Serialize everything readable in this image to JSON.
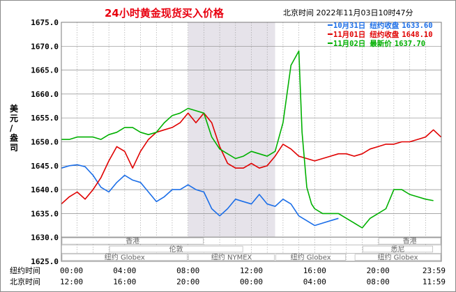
{
  "chart_data": {
    "type": "line",
    "title": "24小时黄金现货买入价格",
    "timestamp": "北京时间  2022年11月03日10时47分",
    "ylabel": "美元/盎司",
    "ylim": [
      1625.0,
      1675.0
    ],
    "yticks": [
      "1675.0",
      "1670.0",
      "1665.0",
      "1660.0",
      "1655.0",
      "1650.0",
      "1645.0",
      "1640.0",
      "1635.0",
      "1630.0",
      "1625.0"
    ],
    "xlim": [
      0,
      24
    ],
    "row1_label": "纽约时间",
    "row2_label": "北京时间",
    "row1_ticks": [
      "00:00",
      "04:00",
      "08:00",
      "12:00",
      "16:00",
      "20:00",
      "23:59"
    ],
    "row2_ticks": [
      "12:00",
      "16:00",
      "20:00",
      "00:00",
      "04:00",
      "08:00",
      "11:59"
    ],
    "tick_hours": [
      0,
      4,
      8,
      12,
      16,
      20,
      23.983
    ],
    "shaded_hours": [
      8,
      13.5
    ],
    "market_labels": [
      {
        "text": "香港",
        "row": 0,
        "start": 0,
        "end": 9
      },
      {
        "text": "香港",
        "row": 0,
        "start": 20,
        "end": 24
      },
      {
        "text": "伦敦",
        "row": 1,
        "start": 3,
        "end": 11.5
      },
      {
        "text": "纽约 Globex",
        "row": 2,
        "start": 0,
        "end": 8
      },
      {
        "text": "纽约 NYMEX",
        "row": 2,
        "start": 8,
        "end": 13.5
      },
      {
        "text": "纽约 Globex",
        "row": 2,
        "start": 13.5,
        "end": 18
      },
      {
        "text": "悉尼",
        "row": 1,
        "start": 19,
        "end": 23.5
      },
      {
        "text": "纽约 Globex",
        "row": 2,
        "start": 18.5,
        "end": 24
      }
    ],
    "series": [
      {
        "name": "10月31日",
        "legend_label": "纽约收盘",
        "legend_value": "1633.60",
        "color": "#1b6ee8",
        "x": [
          0,
          0.5,
          1,
          1.5,
          2,
          2.5,
          3,
          3.5,
          4,
          4.5,
          5,
          5.5,
          6,
          6.5,
          7,
          7.5,
          8,
          8.5,
          9,
          9.5,
          10,
          10.5,
          11,
          11.5,
          12,
          12.5,
          13,
          13.5,
          14,
          14.5,
          15,
          15.5,
          16,
          16.5,
          17,
          17.5,
          18,
          18.5,
          19,
          19.5,
          20,
          20.5,
          21,
          21.5,
          22,
          22.5,
          23,
          23.5,
          23.98
        ],
        "y": [
          1644.5,
          1645,
          1645.2,
          1644.8,
          1643,
          1640.5,
          1639.5,
          1641.5,
          1643,
          1642,
          1641.5,
          1639.5,
          1637.5,
          1638.5,
          1640,
          1640,
          1641,
          1640,
          1639.5,
          1636,
          1634.5,
          1636,
          1638,
          1637.5,
          1637,
          1639,
          1637,
          1636.5,
          1638,
          1637,
          1634.5,
          1633.5,
          1632.5,
          1633,
          1633.5,
          1634,
          null,
          null,
          null,
          null,
          null,
          null,
          null,
          null,
          null,
          null,
          null,
          null,
          null
        ]
      },
      {
        "name": "11月01日",
        "legend_label": "纽约收盘",
        "legend_value": "1648.10",
        "color": "#e00000",
        "x": [
          0,
          0.5,
          1,
          1.5,
          2,
          2.5,
          3,
          3.5,
          4,
          4.5,
          5,
          5.5,
          6,
          6.5,
          7,
          7.5,
          8,
          8.5,
          9,
          9.5,
          10,
          10.5,
          11,
          11.5,
          12,
          12.5,
          13,
          13.5,
          14,
          14.5,
          15,
          15.5,
          16,
          16.5,
          17,
          17.5,
          18,
          18.5,
          19,
          19.5,
          20,
          20.5,
          21,
          21.5,
          22,
          22.5,
          23,
          23.5,
          23.98
        ],
        "y": [
          1637,
          1638.5,
          1639.5,
          1638,
          1640,
          1642.5,
          1646,
          1649,
          1648,
          1644.5,
          1648,
          1650.5,
          1652,
          1652.5,
          1653,
          1654,
          1656,
          1654,
          1656,
          1654,
          1649,
          1645.5,
          1644.5,
          1644.5,
          1645.5,
          1644.5,
          1645,
          1647,
          1649.5,
          1648.5,
          1647,
          1646.5,
          1646,
          1646.5,
          1647,
          1647.5,
          1647.5,
          1647,
          1647.5,
          1648.5,
          1649,
          1649.5,
          1649.5,
          1650,
          1650,
          1650.5,
          1651,
          1652.5,
          1651
        ]
      },
      {
        "name": "11月02日",
        "legend_label": "最新价",
        "legend_value": "1637.70",
        "color": "#00b000",
        "x": [
          0,
          0.5,
          1,
          1.5,
          2,
          2.5,
          3,
          3.5,
          4,
          4.5,
          5,
          5.5,
          6,
          6.5,
          7,
          7.5,
          8,
          8.5,
          9,
          9.5,
          10,
          10.5,
          11,
          11.5,
          12,
          12.5,
          13,
          13.5,
          14,
          14.5,
          15,
          15.2,
          15.5,
          15.8,
          16,
          16.5,
          17,
          17.5,
          18,
          18.5,
          19,
          19.5,
          20,
          20.5,
          21,
          21.5,
          22,
          22.5,
          23,
          23.5
        ],
        "y": [
          1650.5,
          1650.5,
          1651,
          1651,
          1651,
          1650.5,
          1651.5,
          1652,
          1653,
          1653,
          1652,
          1651.5,
          1652,
          1654,
          1655.5,
          1656,
          1657,
          1656.5,
          1656,
          1651,
          1648.5,
          1647.5,
          1646.5,
          1647,
          1648,
          1647.5,
          1647,
          1648,
          1654,
          1666,
          1669,
          1652,
          1640.5,
          1637,
          1636,
          1635,
          1635,
          1635,
          1634,
          1633,
          1632,
          1634,
          1635,
          1636,
          1640,
          1640,
          1639,
          1638.5,
          1638,
          1637.7
        ]
      }
    ]
  }
}
